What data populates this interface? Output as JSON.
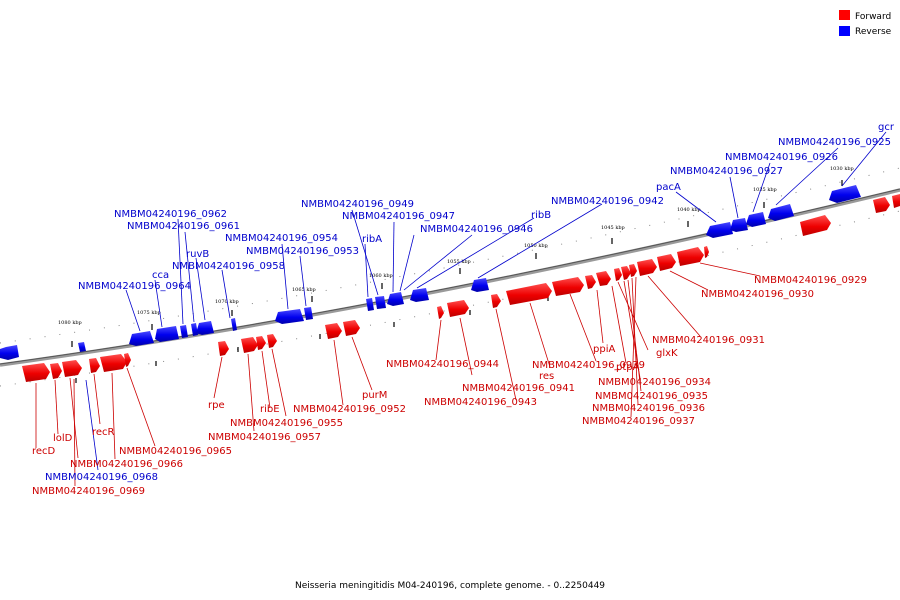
{
  "caption": "Neisseria meningitidis M04-240196, complete genome. - 0..2250449",
  "legend": [
    {
      "label": "Forward",
      "color": "#ff0000"
    },
    {
      "label": "Reverse",
      "color": "#0000ff"
    }
  ],
  "colors": {
    "forward": "#ff0000",
    "reverse": "#0000ff",
    "backbone": "#808080"
  },
  "ticks": [
    "1080 kbp",
    "1075 kbp",
    "1070 kbp",
    "1065 kbp",
    "1060 kbp",
    "1055 kbp",
    "1050 kbp",
    "1045 kbp",
    "1040 kbp",
    "1035 kbp",
    "1030 kbp"
  ],
  "forward_labels": [
    "recD",
    "lolD",
    "recR",
    "NMBM04240196_0965",
    "NMBM04240196_0966",
    "NMBM04240196_0969",
    "rpe",
    "ribE",
    "NMBM04240196_0955",
    "NMBM04240196_0957",
    "NMBM04240196_0952",
    "purM",
    "NMBM04240196_0944",
    "NMBM04240196_0941",
    "NMBM04240196_0943",
    "res",
    "NMBM04240196_0939",
    "ppiA",
    "ptpA",
    "glxK",
    "NMBM04240196_0934",
    "NMBM04240196_0935",
    "NMBM04240196_0936",
    "NMBM04240196_0937",
    "NMBM04240196_0931",
    "NMBM04240196_0930",
    "NMBM04240196_0929"
  ],
  "reverse_labels": [
    "NMBM04240196_0968",
    "NMBM04240196_0964",
    "cca",
    "ruvB",
    "NMBM04240196_0962",
    "NMBM04240196_0961",
    "NMBM04240196_0958",
    "NMBM04240196_0954",
    "NMBM04240196_0953",
    "ribA",
    "NMBM04240196_0949",
    "NMBM04240196_0947",
    "NMBM04240196_0946",
    "ribB",
    "NMBM04240196_0942",
    "pacA",
    "NMBM04240196_0927",
    "NMBM04240196_0926",
    "NMBM04240196_0925",
    "gcr"
  ]
}
